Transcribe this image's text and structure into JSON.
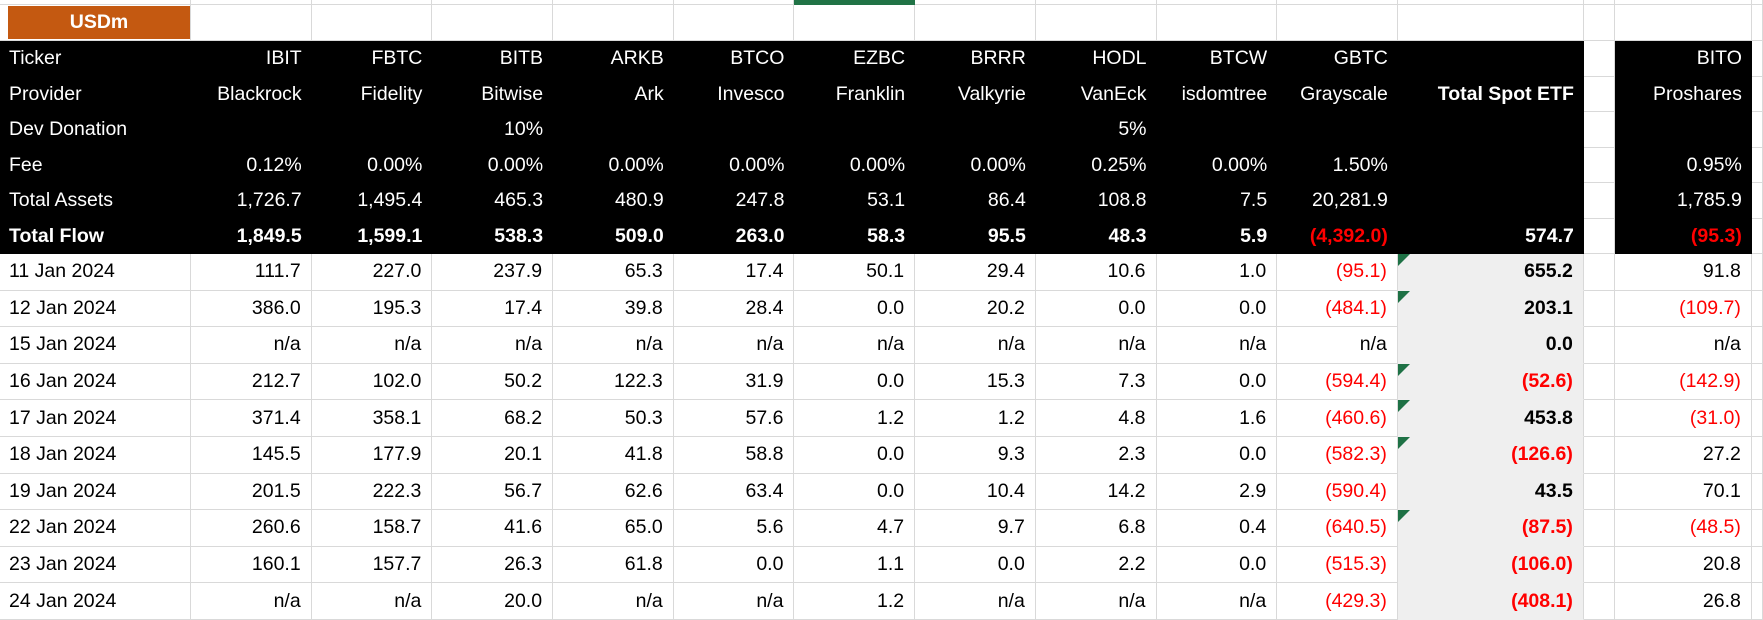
{
  "sheet": {
    "unit_label": "USDm",
    "colors": {
      "accent_orange": "#C45911",
      "header_bg": "#000000",
      "negative_red": "#FF0000",
      "total_col_bg": "#EFEFEF",
      "gridline": "#D9D9D9",
      "flag_green": "#1E7145",
      "selection_green": "#217346"
    },
    "header_rows": {
      "labels": [
        "Ticker",
        "Provider",
        "Dev Donation",
        "Fee",
        "Total Assets",
        "Total Flow"
      ]
    },
    "etf_columns": [
      {
        "ticker": "IBIT",
        "provider": "Blackrock",
        "dev_donation": "",
        "fee": "0.12%",
        "total_assets": "1,726.7",
        "total_flow": "1,849.5"
      },
      {
        "ticker": "FBTC",
        "provider": "Fidelity",
        "dev_donation": "",
        "fee": "0.00%",
        "total_assets": "1,495.4",
        "total_flow": "1,599.1"
      },
      {
        "ticker": "BITB",
        "provider": "Bitwise",
        "dev_donation": "10%",
        "fee": "0.00%",
        "total_assets": "465.3",
        "total_flow": "538.3"
      },
      {
        "ticker": "ARKB",
        "provider": "Ark",
        "dev_donation": "",
        "fee": "0.00%",
        "total_assets": "480.9",
        "total_flow": "509.0"
      },
      {
        "ticker": "BTCO",
        "provider": "Invesco",
        "dev_donation": "",
        "fee": "0.00%",
        "total_assets": "247.8",
        "total_flow": "263.0"
      },
      {
        "ticker": "EZBC",
        "provider": "Franklin",
        "dev_donation": "",
        "fee": "0.00%",
        "total_assets": "53.1",
        "total_flow": "58.3"
      },
      {
        "ticker": "BRRR",
        "provider": "Valkyrie",
        "dev_donation": "",
        "fee": "0.00%",
        "total_assets": "86.4",
        "total_flow": "95.5"
      },
      {
        "ticker": "HODL",
        "provider": "VanEck",
        "dev_donation": "5%",
        "fee": "0.25%",
        "total_assets": "108.8",
        "total_flow": "48.3"
      },
      {
        "ticker": "BTCW",
        "provider": "isdomtree",
        "dev_donation": "",
        "fee": "0.00%",
        "total_assets": "7.5",
        "total_flow": "5.9"
      },
      {
        "ticker": "GBTC",
        "provider": "Grayscale",
        "dev_donation": "",
        "fee": "1.50%",
        "total_assets": "20,281.9",
        "total_flow": "(4,392.0)"
      }
    ],
    "total_column": {
      "header": "Total Spot ETF",
      "total_flow": "574.7"
    },
    "bito_column": {
      "ticker": "BITO",
      "provider": "Proshares",
      "dev_donation": "",
      "fee": "0.95%",
      "total_assets": "1,785.9",
      "total_flow": "(95.3)"
    },
    "daily_rows": [
      {
        "date": "11 Jan 2024",
        "values": [
          "111.7",
          "227.0",
          "237.9",
          "65.3",
          "17.4",
          "50.1",
          "29.4",
          "10.6",
          "1.0",
          "(95.1)"
        ],
        "total_spot": "655.2",
        "bito": "91.8",
        "error_flag": true
      },
      {
        "date": "12 Jan 2024",
        "values": [
          "386.0",
          "195.3",
          "17.4",
          "39.8",
          "28.4",
          "0.0",
          "20.2",
          "0.0",
          "0.0",
          "(484.1)"
        ],
        "total_spot": "203.1",
        "bito": "(109.7)",
        "error_flag": true
      },
      {
        "date": "15 Jan 2024",
        "values": [
          "n/a",
          "n/a",
          "n/a",
          "n/a",
          "n/a",
          "n/a",
          "n/a",
          "n/a",
          "n/a",
          "n/a"
        ],
        "total_spot": "0.0",
        "bito": "n/a",
        "error_flag": false
      },
      {
        "date": "16 Jan 2024",
        "values": [
          "212.7",
          "102.0",
          "50.2",
          "122.3",
          "31.9",
          "0.0",
          "15.3",
          "7.3",
          "0.0",
          "(594.4)"
        ],
        "total_spot": "(52.6)",
        "bito": "(142.9)",
        "error_flag": true
      },
      {
        "date": "17 Jan 2024",
        "values": [
          "371.4",
          "358.1",
          "68.2",
          "50.3",
          "57.6",
          "1.2",
          "1.2",
          "4.8",
          "1.6",
          "(460.6)"
        ],
        "total_spot": "453.8",
        "bito": "(31.0)",
        "error_flag": true
      },
      {
        "date": "18 Jan 2024",
        "values": [
          "145.5",
          "177.9",
          "20.1",
          "41.8",
          "58.8",
          "0.0",
          "9.3",
          "2.3",
          "0.0",
          "(582.3)"
        ],
        "total_spot": "(126.6)",
        "bito": "27.2",
        "error_flag": true
      },
      {
        "date": "19 Jan 2024",
        "values": [
          "201.5",
          "222.3",
          "56.7",
          "62.6",
          "63.4",
          "0.0",
          "10.4",
          "14.2",
          "2.9",
          "(590.4)"
        ],
        "total_spot": "43.5",
        "bito": "70.1",
        "error_flag": false
      },
      {
        "date": "22 Jan 2024",
        "values": [
          "260.6",
          "158.7",
          "41.6",
          "65.0",
          "5.6",
          "4.7",
          "9.7",
          "6.8",
          "0.4",
          "(640.5)"
        ],
        "total_spot": "(87.5)",
        "bito": "(48.5)",
        "error_flag": true
      },
      {
        "date": "23 Jan 2024",
        "values": [
          "160.1",
          "157.7",
          "26.3",
          "61.8",
          "0.0",
          "1.1",
          "0.0",
          "2.2",
          "0.0",
          "(515.3)"
        ],
        "total_spot": "(106.0)",
        "bito": "20.8",
        "error_flag": false
      },
      {
        "date": "24 Jan 2024",
        "values": [
          "n/a",
          "n/a",
          "20.0",
          "n/a",
          "n/a",
          "1.2",
          "n/a",
          "n/a",
          "n/a",
          "(429.3)"
        ],
        "total_spot": "(408.1)",
        "bito": "26.8",
        "error_flag": false
      }
    ]
  }
}
